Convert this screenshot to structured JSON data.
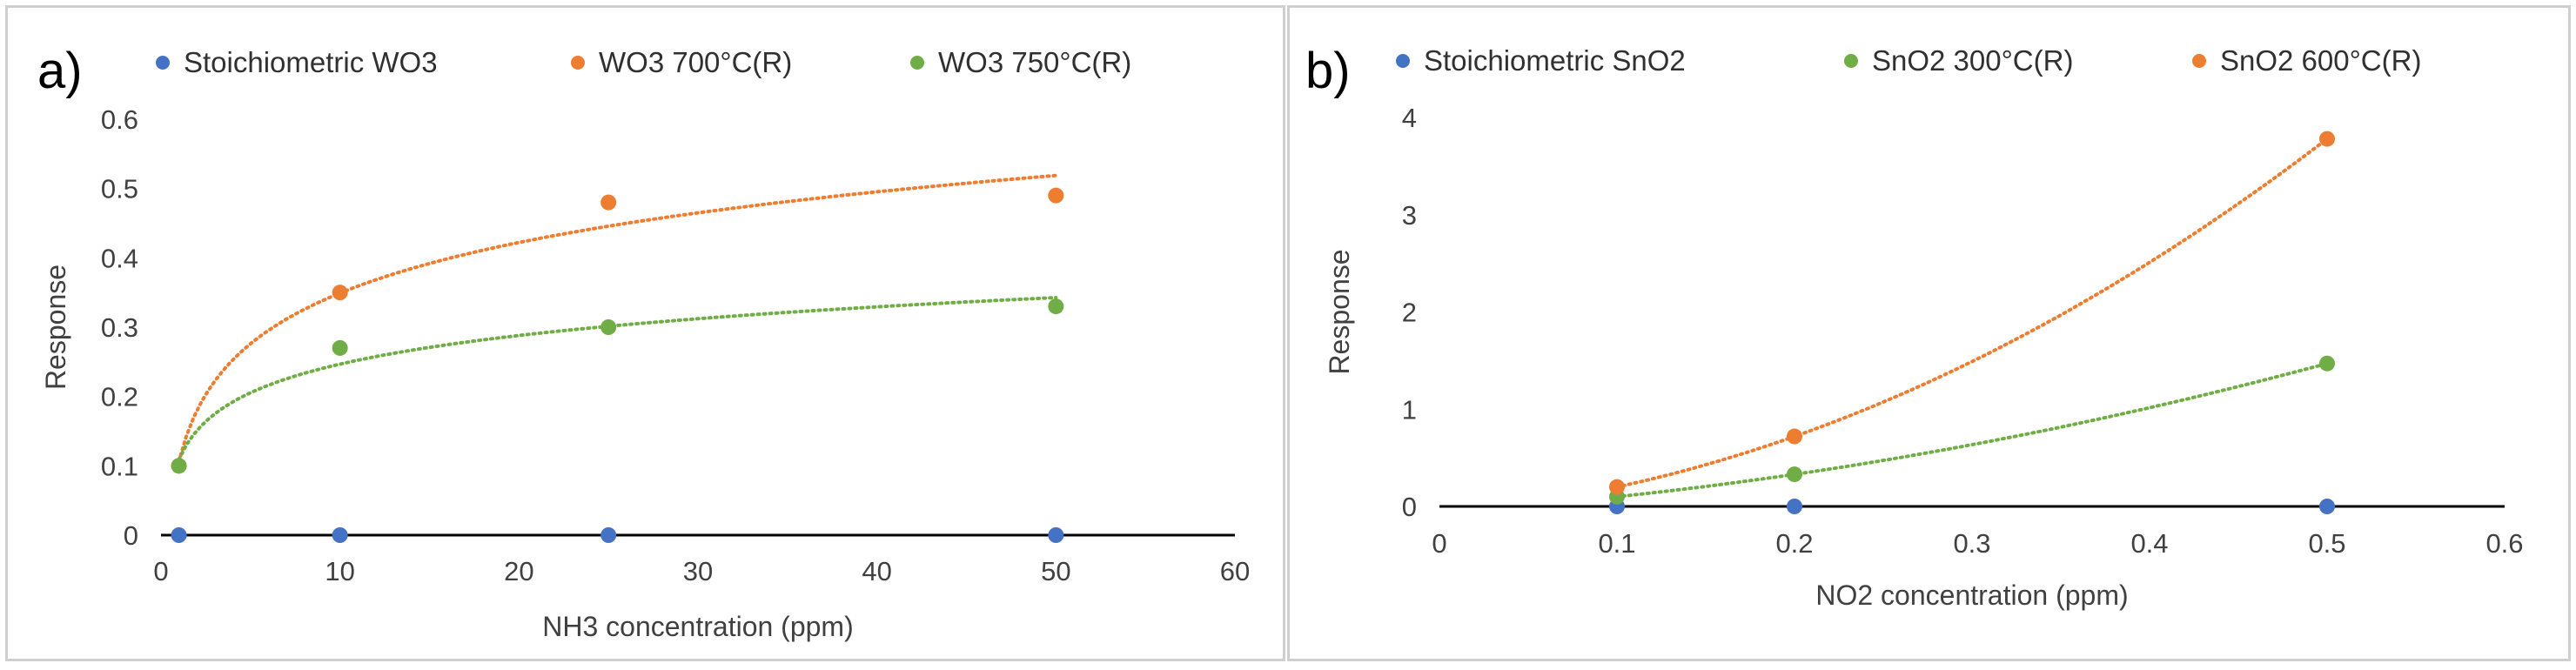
{
  "colors": {
    "blue": "#4472C4",
    "orange": "#ED7D31",
    "green": "#70AD47",
    "axis": "#000000"
  },
  "panels": [
    {
      "label": "a)",
      "chart_data": {
        "type": "scatter",
        "title": "",
        "xlabel": "NH3 concentration (ppm)",
        "ylabel": "Response",
        "xlim": [
          0,
          60
        ],
        "ylim": [
          0,
          0.6
        ],
        "xticks": [
          0,
          10,
          20,
          30,
          40,
          50,
          60
        ],
        "yticks": [
          0,
          0.1,
          0.2,
          0.3,
          0.4,
          0.5,
          0.6
        ],
        "xtick_labels": [
          "0",
          "10",
          "20",
          "30",
          "40",
          "50",
          "60"
        ],
        "ytick_labels": [
          "0",
          "0.1",
          "0.2",
          "0.3",
          "0.4",
          "0.5",
          "0.6"
        ],
        "grid": false,
        "legend": "top",
        "trendline": "logarithmic",
        "series": [
          {
            "name": "Stoichiometric WO3",
            "color": "blue",
            "x": [
              1,
              10,
              25,
              50
            ],
            "y": [
              0,
              0,
              0,
              0
            ],
            "trend": false
          },
          {
            "name": "WO3 700°C(R)",
            "color": "orange",
            "x": [
              1,
              10,
              25,
              50
            ],
            "y": [
              0.1,
              0.35,
              0.48,
              0.49
            ],
            "trend": true
          },
          {
            "name": "WO3 750°C(R)",
            "color": "green",
            "x": [
              1,
              10,
              25,
              50
            ],
            "y": [
              0.1,
              0.27,
              0.3,
              0.33
            ],
            "trend": true
          }
        ]
      }
    },
    {
      "label": "b)",
      "chart_data": {
        "type": "scatter",
        "title": "",
        "xlabel": "NO2 concentration (ppm)",
        "ylabel": "Response",
        "xlim": [
          0,
          0.6
        ],
        "ylim": [
          0,
          4
        ],
        "xticks": [
          0,
          0.1,
          0.2,
          0.3,
          0.4,
          0.5,
          0.6
        ],
        "yticks": [
          0,
          1,
          2,
          3,
          4
        ],
        "xtick_labels": [
          "0",
          "0.1",
          "0.2",
          "0.3",
          "0.4",
          "0.5",
          "0.6"
        ],
        "ytick_labels": [
          "0",
          "1",
          "2",
          "3",
          "4"
        ],
        "grid": false,
        "legend": "top",
        "trendline": "polynomial",
        "series": [
          {
            "name": "Stoichiometric SnO2",
            "color": "blue",
            "x": [
              0.1,
              0.2,
              0.5
            ],
            "y": [
              0,
              0,
              0
            ],
            "trend": false
          },
          {
            "name": "SnO2 300°C(R)",
            "color": "green",
            "x": [
              0.1,
              0.2,
              0.5
            ],
            "y": [
              0.1,
              0.33,
              1.47
            ],
            "trend": true
          },
          {
            "name": "SnO2 600°C(R)",
            "color": "orange",
            "x": [
              0.1,
              0.2,
              0.5
            ],
            "y": [
              0.2,
              0.72,
              3.78
            ],
            "trend": true
          }
        ]
      }
    }
  ]
}
